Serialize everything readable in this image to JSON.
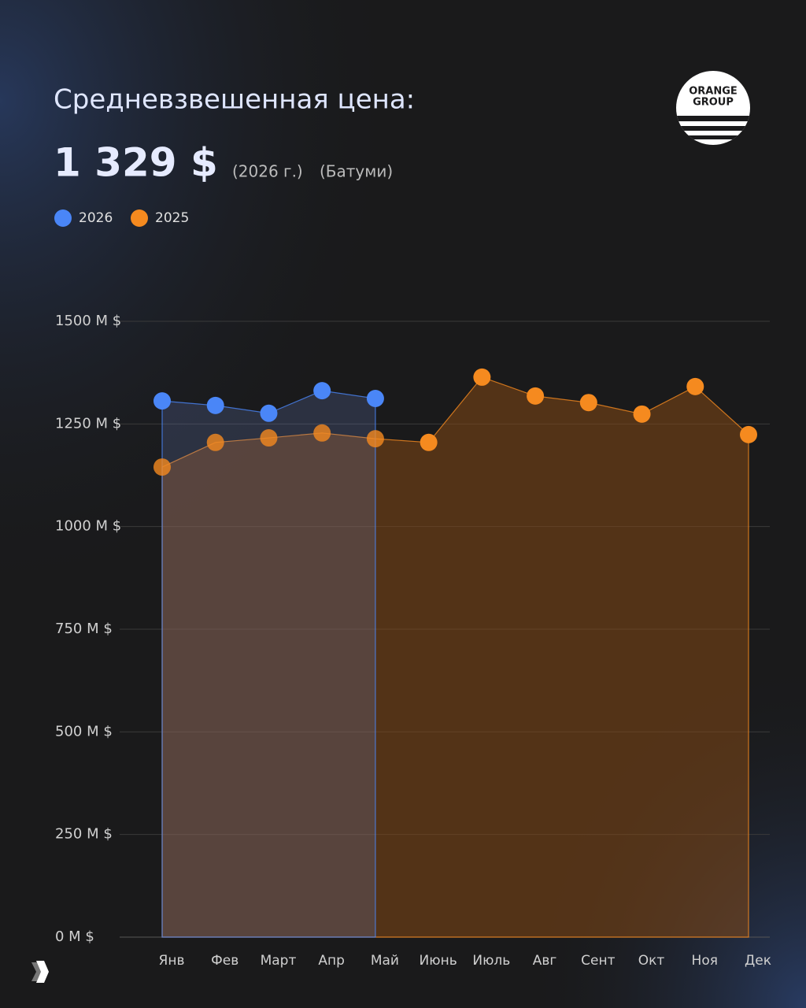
{
  "logo_text": [
    "ORANGE",
    "GROUP"
  ],
  "chart_data": {
    "type": "area",
    "title": "Средневзвешенная цена:",
    "headline": "1 329 $",
    "subtitle_year": "(2026 г.)",
    "subtitle_city": "(Батуми)",
    "categories": [
      "Янв",
      "Фев",
      "Март",
      "Апр",
      "Май",
      "Июнь",
      "Июль",
      "Авг",
      "Сент",
      "Окт",
      "Ноя",
      "Дек"
    ],
    "series": [
      {
        "name": "2026",
        "color": "#4a86f7",
        "values": [
          1306,
          1295,
          1276,
          1331,
          1312,
          null,
          null,
          null,
          null,
          null,
          null,
          null
        ]
      },
      {
        "name": "2025",
        "color": "#f58a1f",
        "values": [
          1145,
          1205,
          1216,
          1228,
          1214,
          1205,
          1364,
          1318,
          1302,
          1274,
          1341,
          1224
        ]
      }
    ],
    "ylim": [
      0,
      1500
    ],
    "yticks": [
      {
        "value": 0,
        "label": "0 М $"
      },
      {
        "value": 250,
        "label": "250 М $"
      },
      {
        "value": 500,
        "label": "500 М $"
      },
      {
        "value": 750,
        "label": "750 М $"
      },
      {
        "value": 1000,
        "label": "1000 М $"
      },
      {
        "value": 1250,
        "label": "1250 М $"
      },
      {
        "value": 1500,
        "label": "1500 М $"
      }
    ],
    "grid": true,
    "legend": "top-left"
  }
}
